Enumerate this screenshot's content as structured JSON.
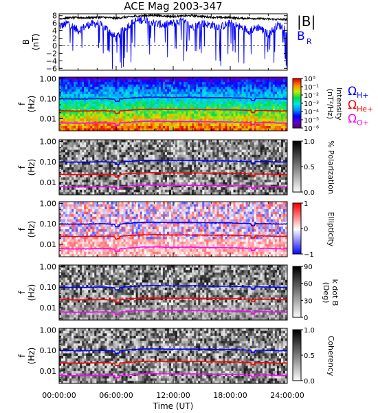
{
  "title": "ACE Mag 2003-347",
  "xlabel": "Time (UT)",
  "x_ticks": [
    "00:00:00",
    "06:00:00",
    "12:00:00",
    "18:00:00",
    "24:00:00"
  ],
  "f_ylabel": {
    "line1": "f",
    "line2": "(Hz)"
  },
  "f_ticks": [
    "1.00",
    "0.10",
    "0.01"
  ],
  "gyro_labels": {
    "h": {
      "base": "Ω",
      "sub": "H+",
      "color": "#0000ff"
    },
    "he": {
      "base": "Ω",
      "sub": "He+",
      "color": "#ff0000"
    },
    "o": {
      "base": "Ω",
      "sub": "O+",
      "color": "#ff00ff"
    }
  },
  "colorbars": [
    {
      "labels": [
        "Intensity",
        "(nT²/Hz)"
      ],
      "ticks": [
        "10⁰",
        "10⁻¹",
        "10⁻²",
        "10⁻³",
        "10⁻⁴",
        "10⁻⁵",
        "10⁻⁶"
      ]
    },
    {
      "labels": [
        "% Polarization"
      ],
      "ticks": [
        "1.0",
        "0.5",
        "0.0"
      ]
    },
    {
      "labels": [
        "Ellipticity"
      ],
      "ticks": [
        "1",
        "0",
        "−1"
      ]
    },
    {
      "labels": [
        "k dot B",
        "(Deg)"
      ],
      "ticks": [
        "90",
        "60",
        "30",
        "0"
      ]
    },
    {
      "labels": [
        "Coherency"
      ],
      "ticks": [
        "1.0",
        "0.5",
        "0.0"
      ]
    }
  ],
  "chart_data": [
    {
      "type": "line",
      "title": "ACE Mag 2003-347",
      "ylabel": "B (nT)",
      "ylim": [
        -6.5,
        8.5
      ],
      "y_ticks": [
        "8",
        "6",
        "4",
        "2",
        "0",
        "−2",
        "−4",
        "−6"
      ],
      "x_hours": [
        0,
        1,
        2,
        3,
        4,
        5,
        6,
        7,
        8,
        9,
        10,
        11,
        12,
        13,
        14,
        15,
        16,
        17,
        18,
        19,
        20,
        21,
        22,
        23,
        24
      ],
      "series": [
        {
          "name": "|B|",
          "color": "#000000",
          "values": [
            7.2,
            7.4,
            7.5,
            7.4,
            7.6,
            7.5,
            7.3,
            7.6,
            7.8,
            8.0,
            8.1,
            7.9,
            7.8,
            7.9,
            8.0,
            7.8,
            7.6,
            7.5,
            7.5,
            7.3,
            7.3,
            7.2,
            7.1,
            7.0,
            7.0
          ]
        },
        {
          "name": "B_R",
          "color": "#0000ff",
          "values": [
            5.0,
            6.0,
            4.0,
            5.5,
            6.0,
            4.5,
            2.0,
            5.0,
            6.5,
            7.0,
            6.0,
            5.5,
            6.0,
            6.5,
            5.0,
            6.0,
            5.5,
            5.0,
            6.0,
            5.0,
            4.0,
            5.0,
            3.0,
            5.5,
            4.5
          ]
        }
      ]
    },
    {
      "type": "heatmap",
      "quantity": "Intensity (nT²/Hz)",
      "ylabel": "f (Hz)",
      "y_log_range": [
        0.0025,
        1.2
      ],
      "color_range": [
        1e-06,
        1
      ]
    },
    {
      "type": "heatmap",
      "quantity": "% Polarization",
      "ylabel": "f (Hz)",
      "color_range": [
        0.0,
        1.0
      ]
    },
    {
      "type": "heatmap",
      "quantity": "Ellipticity",
      "ylabel": "f (Hz)",
      "color_range": [
        -1,
        1
      ]
    },
    {
      "type": "heatmap",
      "quantity": "k dot B (Deg)",
      "ylabel": "f (Hz)",
      "color_range": [
        0,
        90
      ]
    },
    {
      "type": "heatmap",
      "quantity": "Coherency",
      "ylabel": "f (Hz)",
      "color_range": [
        0.0,
        1.0
      ]
    },
    {
      "type": "line",
      "name": "gyrofrequency overlays",
      "x_hours": [
        0,
        1,
        2,
        3,
        4,
        5,
        6,
        7,
        8,
        9,
        10,
        11,
        12,
        13,
        14,
        15,
        16,
        17,
        18,
        19,
        20,
        21,
        22,
        23,
        24
      ],
      "series": [
        {
          "name": "ΩH+",
          "color": "#0000ff",
          "values": [
            0.1,
            0.098,
            0.097,
            0.098,
            0.101,
            0.1,
            0.094,
            0.103,
            0.112,
            0.118,
            0.12,
            0.117,
            0.115,
            0.116,
            0.117,
            0.114,
            0.111,
            0.112,
            0.111,
            0.108,
            0.104,
            0.103,
            0.102,
            0.098,
            0.098
          ]
        },
        {
          "name": "ΩHe+",
          "color": "#ff0000",
          "values": [
            0.025,
            0.0245,
            0.024,
            0.0245,
            0.025,
            0.025,
            0.0235,
            0.026,
            0.028,
            0.0295,
            0.03,
            0.029,
            0.0288,
            0.029,
            0.029,
            0.0285,
            0.028,
            0.028,
            0.028,
            0.027,
            0.026,
            0.026,
            0.0255,
            0.0245,
            0.0245
          ]
        },
        {
          "name": "ΩO+",
          "color": "#ff00ff",
          "values": [
            0.0062,
            0.0061,
            0.006,
            0.0061,
            0.0063,
            0.0062,
            0.0059,
            0.0064,
            0.007,
            0.0074,
            0.0075,
            0.0073,
            0.0072,
            0.0072,
            0.0073,
            0.0071,
            0.0069,
            0.007,
            0.0069,
            0.0067,
            0.0065,
            0.0065,
            0.0064,
            0.0061,
            0.0061
          ]
        }
      ]
    }
  ]
}
